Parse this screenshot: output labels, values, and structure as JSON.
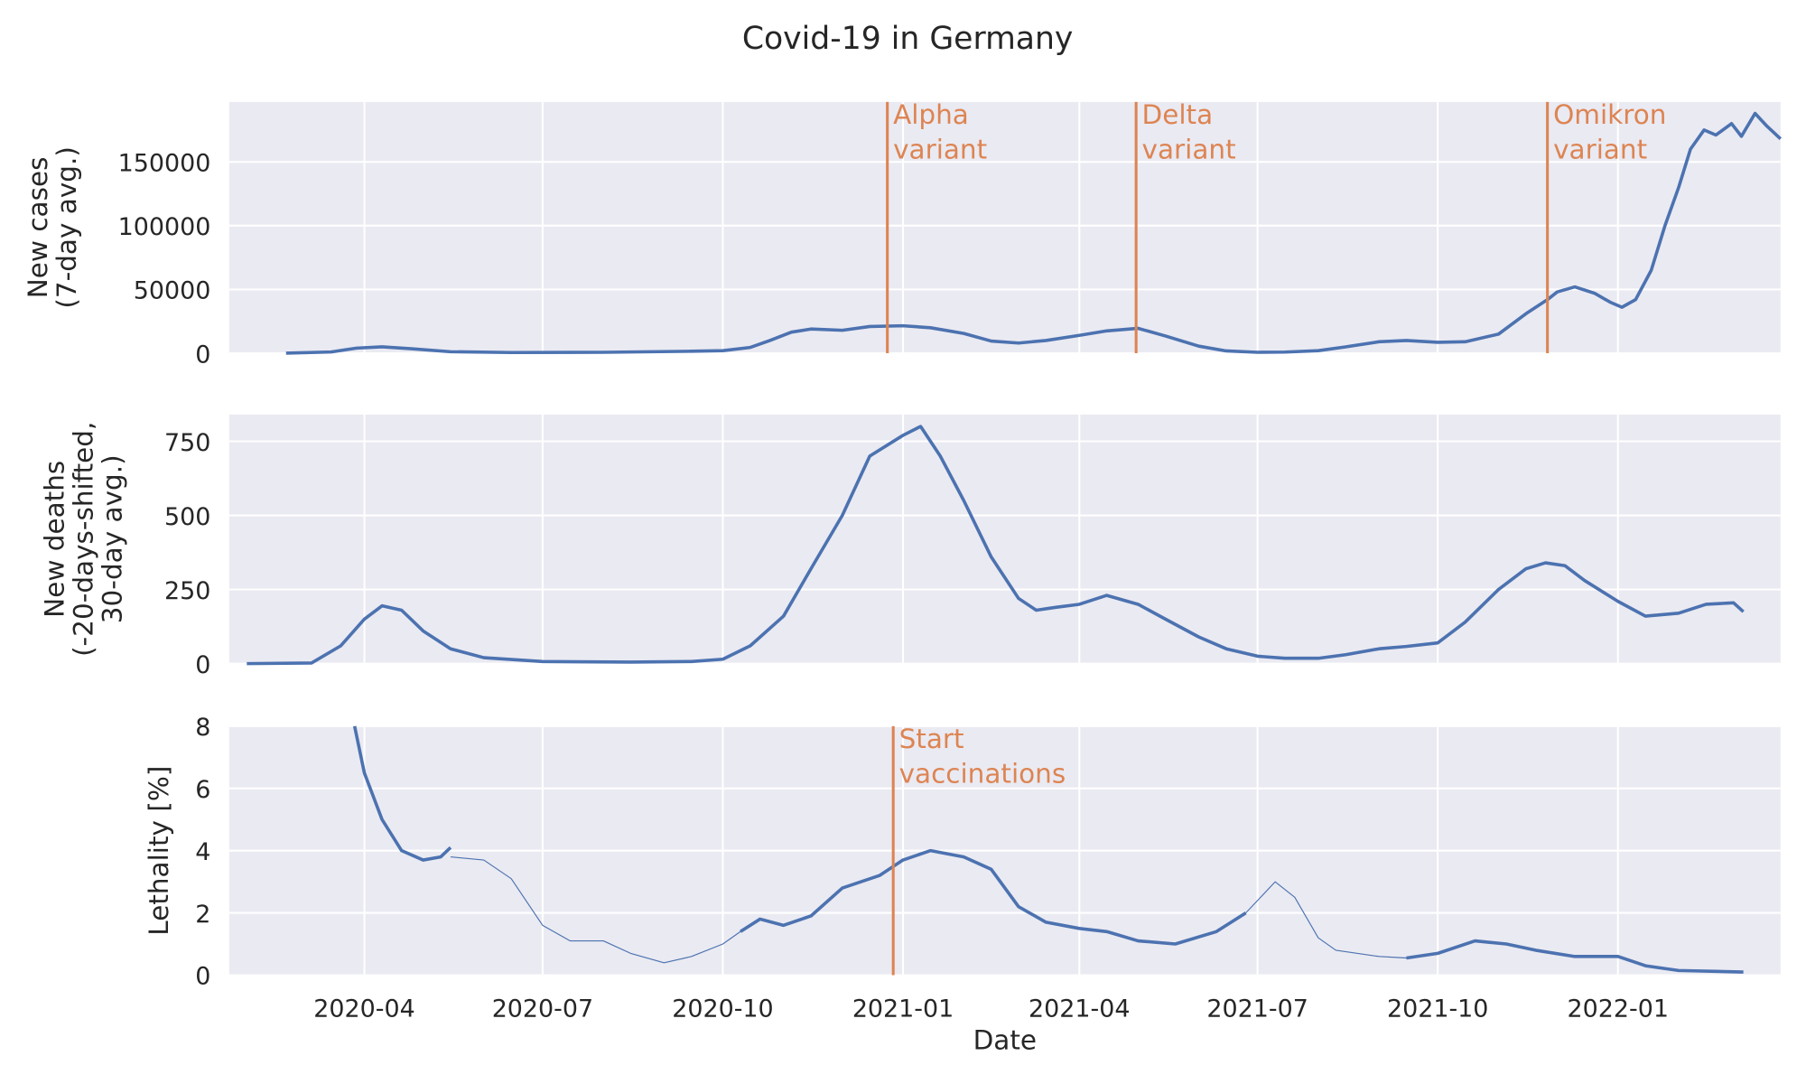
{
  "colors": {
    "background": "#eaeaf2",
    "grid": "#ffffff",
    "series": "#4c72b0",
    "annotation": "#dd8452",
    "text": "#262626"
  },
  "chart_data": {
    "title": "Covid-19 in Germany",
    "type": "line",
    "xlabel": "Date",
    "xlim": [
      "2020-01-23",
      "2022-03-25"
    ],
    "x_ticks": [
      "2020-04",
      "2020-07",
      "2020-10",
      "2021-01",
      "2021-04",
      "2021-07",
      "2021-10",
      "2022-01"
    ],
    "panels": [
      {
        "name": "cases",
        "ylabel": [
          "New cases",
          "(7-day avg.)"
        ],
        "ylim": [
          0,
          197000
        ],
        "y_ticks": [
          0,
          50000,
          100000,
          150000
        ],
        "annotations": [
          {
            "date": "2020-12-24",
            "label": [
              "Alpha",
              "variant"
            ]
          },
          {
            "date": "2021-04-30",
            "label": [
              "Delta",
              "variant"
            ]
          },
          {
            "date": "2021-11-26",
            "label": [
              "Omikron",
              "variant"
            ]
          }
        ],
        "segments": [
          {
            "thick": true,
            "points": [
              [
                "2020-02-21",
                100
              ],
              [
                "2020-03-15",
                1000
              ],
              [
                "2020-03-28",
                4000
              ],
              [
                "2020-04-10",
                5000
              ],
              [
                "2020-04-25",
                3500
              ],
              [
                "2020-05-15",
                1200
              ],
              [
                "2020-06-15",
                500
              ],
              [
                "2020-08-01",
                700
              ],
              [
                "2020-09-15",
                1500
              ],
              [
                "2020-10-01",
                2000
              ],
              [
                "2020-10-15",
                4500
              ],
              [
                "2020-10-25",
                10000
              ],
              [
                "2020-11-05",
                16500
              ],
              [
                "2020-11-15",
                19000
              ],
              [
                "2020-12-01",
                18000
              ],
              [
                "2020-12-15",
                21000
              ],
              [
                "2021-01-01",
                21500
              ],
              [
                "2021-01-15",
                20000
              ],
              [
                "2021-02-01",
                15500
              ],
              [
                "2021-02-15",
                9500
              ],
              [
                "2021-03-01",
                8000
              ],
              [
                "2021-03-15",
                10000
              ],
              [
                "2021-04-01",
                14000
              ],
              [
                "2021-04-15",
                17500
              ],
              [
                "2021-05-01",
                19500
              ],
              [
                "2021-05-15",
                13500
              ],
              [
                "2021-06-01",
                5500
              ],
              [
                "2021-06-15",
                1800
              ],
              [
                "2021-07-01",
                700
              ],
              [
                "2021-07-15",
                900
              ],
              [
                "2021-08-01",
                2000
              ],
              [
                "2021-08-15",
                5000
              ],
              [
                "2021-09-01",
                9000
              ],
              [
                "2021-09-15",
                10000
              ],
              [
                "2021-10-01",
                8500
              ],
              [
                "2021-10-15",
                9000
              ],
              [
                "2021-11-01",
                15000
              ],
              [
                "2021-11-15",
                31000
              ],
              [
                "2021-11-26",
                42000
              ],
              [
                "2021-12-01",
                48000
              ],
              [
                "2021-12-10",
                52000
              ],
              [
                "2021-12-20",
                47000
              ],
              [
                "2021-12-28",
                40000
              ],
              [
                "2022-01-03",
                36000
              ],
              [
                "2022-01-10",
                42000
              ],
              [
                "2022-01-18",
                65000
              ],
              [
                "2022-01-25",
                100000
              ],
              [
                "2022-02-01",
                130000
              ],
              [
                "2022-02-07",
                160000
              ],
              [
                "2022-02-14",
                175000
              ],
              [
                "2022-02-20",
                171000
              ],
              [
                "2022-02-28",
                180000
              ],
              [
                "2022-03-05",
                170000
              ],
              [
                "2022-03-12",
                188000
              ],
              [
                "2022-03-18",
                178000
              ],
              [
                "2022-03-25",
                168000
              ]
            ]
          }
        ]
      },
      {
        "name": "deaths",
        "ylabel": [
          "New deaths",
          "(-20-days-shifted,",
          "30-day avg.)"
        ],
        "ylim": [
          0,
          840
        ],
        "y_ticks": [
          0,
          250,
          500,
          750
        ],
        "annotations": [],
        "segments": [
          {
            "thick": true,
            "points": [
              [
                "2020-02-01",
                0
              ],
              [
                "2020-03-05",
                2
              ],
              [
                "2020-03-20",
                60
              ],
              [
                "2020-04-01",
                150
              ],
              [
                "2020-04-10",
                195
              ],
              [
                "2020-04-20",
                180
              ],
              [
                "2020-05-01",
                110
              ],
              [
                "2020-05-15",
                50
              ],
              [
                "2020-06-01",
                20
              ],
              [
                "2020-07-01",
                7
              ],
              [
                "2020-08-15",
                5
              ],
              [
                "2020-09-15",
                7
              ],
              [
                "2020-10-01",
                15
              ],
              [
                "2020-10-15",
                60
              ],
              [
                "2020-11-01",
                160
              ],
              [
                "2020-11-15",
                320
              ],
              [
                "2020-12-01",
                500
              ],
              [
                "2020-12-15",
                700
              ],
              [
                "2021-01-01",
                770
              ],
              [
                "2021-01-10",
                800
              ],
              [
                "2021-01-20",
                700
              ],
              [
                "2021-02-01",
                550
              ],
              [
                "2021-02-15",
                360
              ],
              [
                "2021-03-01",
                220
              ],
              [
                "2021-03-10",
                180
              ],
              [
                "2021-03-20",
                190
              ],
              [
                "2021-04-01",
                200
              ],
              [
                "2021-04-15",
                230
              ],
              [
                "2021-05-01",
                200
              ],
              [
                "2021-05-15",
                150
              ],
              [
                "2021-06-01",
                90
              ],
              [
                "2021-06-15",
                50
              ],
              [
                "2021-07-01",
                25
              ],
              [
                "2021-07-15",
                18
              ],
              [
                "2021-08-01",
                18
              ],
              [
                "2021-08-15",
                30
              ],
              [
                "2021-09-01",
                50
              ],
              [
                "2021-09-15",
                58
              ],
              [
                "2021-10-01",
                70
              ],
              [
                "2021-10-15",
                140
              ],
              [
                "2021-11-01",
                250
              ],
              [
                "2021-11-15",
                320
              ],
              [
                "2021-11-25",
                340
              ],
              [
                "2021-12-05",
                330
              ],
              [
                "2021-12-15",
                280
              ],
              [
                "2022-01-01",
                210
              ],
              [
                "2022-01-15",
                160
              ],
              [
                "2022-02-01",
                170
              ],
              [
                "2022-02-15",
                200
              ],
              [
                "2022-03-01",
                205
              ],
              [
                "2022-03-06",
                175
              ]
            ]
          }
        ]
      },
      {
        "name": "lethality",
        "ylabel": [
          "Lethality [%]"
        ],
        "ylim": [
          0,
          8
        ],
        "y_ticks": [
          0,
          2,
          4,
          6,
          8
        ],
        "annotations": [
          {
            "date": "2020-12-27",
            "label": [
              "Start",
              "vaccinations"
            ]
          }
        ],
        "segments": [
          {
            "thick": true,
            "points": [
              [
                "2020-03-27",
                8
              ],
              [
                "2020-04-01",
                6.5
              ],
              [
                "2020-04-10",
                5
              ],
              [
                "2020-04-20",
                4
              ],
              [
                "2020-05-01",
                3.7
              ],
              [
                "2020-05-10",
                3.8
              ],
              [
                "2020-05-15",
                4.1
              ]
            ]
          },
          {
            "thick": false,
            "points": [
              [
                "2020-05-15",
                3.8
              ],
              [
                "2020-06-01",
                3.7
              ],
              [
                "2020-06-15",
                3.1
              ],
              [
                "2020-07-01",
                1.6
              ],
              [
                "2020-07-15",
                1.1
              ],
              [
                "2020-08-01",
                1.1
              ],
              [
                "2020-08-15",
                0.7
              ],
              [
                "2020-09-01",
                0.4
              ],
              [
                "2020-09-15",
                0.6
              ],
              [
                "2020-10-01",
                1.0
              ],
              [
                "2020-10-10",
                1.4
              ]
            ]
          },
          {
            "thick": true,
            "points": [
              [
                "2020-10-10",
                1.4
              ],
              [
                "2020-10-20",
                1.8
              ],
              [
                "2020-11-01",
                1.6
              ],
              [
                "2020-11-15",
                1.9
              ],
              [
                "2020-12-01",
                2.8
              ],
              [
                "2020-12-20",
                3.2
              ],
              [
                "2021-01-01",
                3.7
              ],
              [
                "2021-01-15",
                4.0
              ],
              [
                "2021-02-01",
                3.8
              ],
              [
                "2021-02-15",
                3.4
              ],
              [
                "2021-03-01",
                2.2
              ],
              [
                "2021-03-15",
                1.7
              ],
              [
                "2021-04-01",
                1.5
              ],
              [
                "2021-04-15",
                1.4
              ],
              [
                "2021-05-01",
                1.1
              ],
              [
                "2021-05-20",
                1.0
              ],
              [
                "2021-06-10",
                1.4
              ],
              [
                "2021-06-25",
                2.0
              ]
            ]
          },
          {
            "thick": false,
            "points": [
              [
                "2021-06-25",
                2.0
              ],
              [
                "2021-07-10",
                3.0
              ],
              [
                "2021-07-20",
                2.5
              ],
              [
                "2021-08-01",
                1.2
              ],
              [
                "2021-08-10",
                0.8
              ],
              [
                "2021-09-01",
                0.6
              ],
              [
                "2021-09-15",
                0.55
              ]
            ]
          },
          {
            "thick": true,
            "points": [
              [
                "2021-09-15",
                0.55
              ],
              [
                "2021-10-01",
                0.7
              ],
              [
                "2021-10-20",
                1.1
              ],
              [
                "2021-11-05",
                1.0
              ],
              [
                "2021-11-20",
                0.8
              ],
              [
                "2021-12-10",
                0.6
              ],
              [
                "2022-01-01",
                0.6
              ],
              [
                "2022-01-15",
                0.3
              ],
              [
                "2022-02-01",
                0.15
              ],
              [
                "2022-03-06",
                0.1
              ]
            ]
          }
        ]
      }
    ]
  }
}
